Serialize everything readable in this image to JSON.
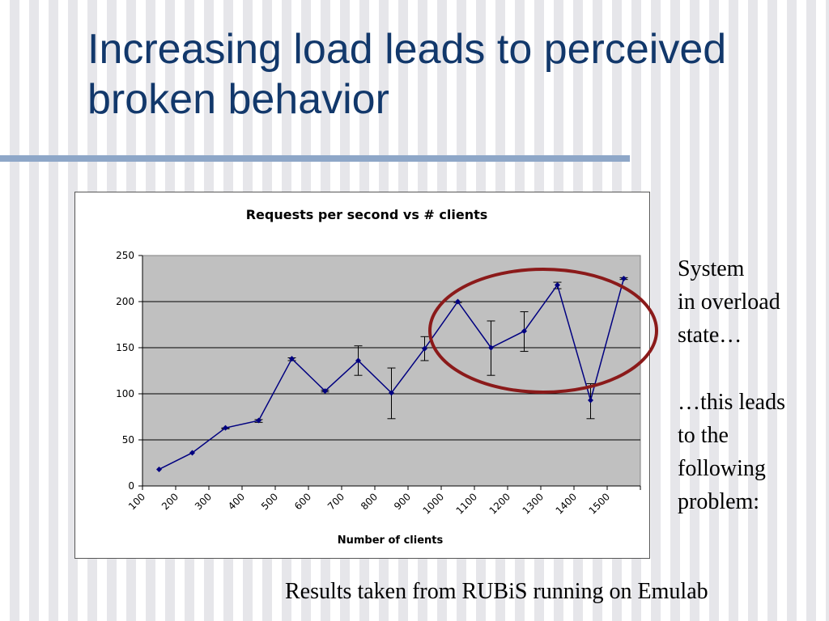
{
  "slide": {
    "title": "Increasing load leads to perceived broken behavior",
    "note_overload": "System\nin overload\nstate…",
    "note_leads": "…this leads\nto the\nfollowing\nproblem:",
    "source": "Results taken from RUBiS running on Emulab",
    "title_color": "#12386b",
    "highlight_color": "#8b1a1a"
  },
  "chart_data": {
    "type": "line",
    "title": "Requests per second vs # clients",
    "xlabel": "Number of clients",
    "ylabel": "",
    "categories": [
      "100",
      "200",
      "300",
      "400",
      "500",
      "600",
      "700",
      "800",
      "900",
      "1000",
      "1100",
      "1200",
      "1300",
      "1400",
      "1500"
    ],
    "ylim": [
      0,
      250
    ],
    "yticks": [
      0,
      50,
      100,
      150,
      200,
      250
    ],
    "grid": true,
    "legend": "none",
    "plot_background": "#c0c0c0",
    "line_color": "#000080",
    "series": [
      {
        "values": [
          18,
          36,
          63,
          71,
          138,
          103,
          136,
          101,
          149,
          200,
          150,
          168,
          218,
          93,
          225
        ],
        "error_low": [
          18,
          36,
          62,
          69,
          136,
          102,
          120,
          73,
          136,
          199,
          120,
          146,
          214,
          73,
          224
        ],
        "error_high": [
          18,
          36,
          63,
          72,
          139,
          104,
          152,
          128,
          162,
          200,
          179,
          189,
          221,
          111,
          226
        ]
      }
    ],
    "annotation": "circle around 1000–1500 clients"
  }
}
